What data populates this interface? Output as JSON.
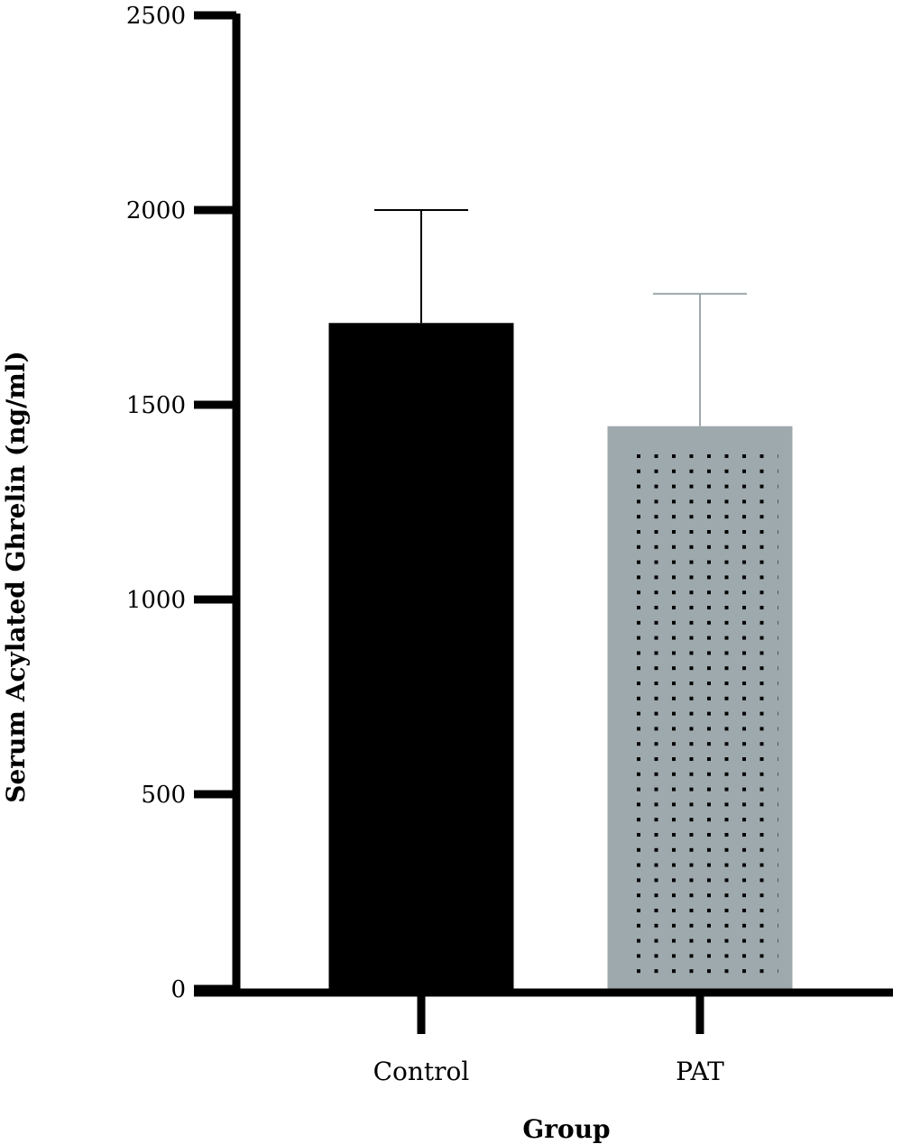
{
  "chart_data": {
    "type": "bar",
    "categories": [
      "Control",
      "PAT"
    ],
    "series": [
      {
        "values": [
          1710,
          1445
        ],
        "errors": [
          290,
          340
        ]
      }
    ],
    "colors": [
      "#000000",
      "#9ea9ad"
    ],
    "pattern": [
      null,
      "dots"
    ],
    "xlabel": "Group",
    "ylabel": "Serum Acylated Ghrelin (ng/ml)",
    "ylim": [
      0,
      2500
    ],
    "yticks": [
      0,
      500,
      1000,
      1500,
      2000,
      2500
    ],
    "grid": false,
    "legend": "none"
  }
}
